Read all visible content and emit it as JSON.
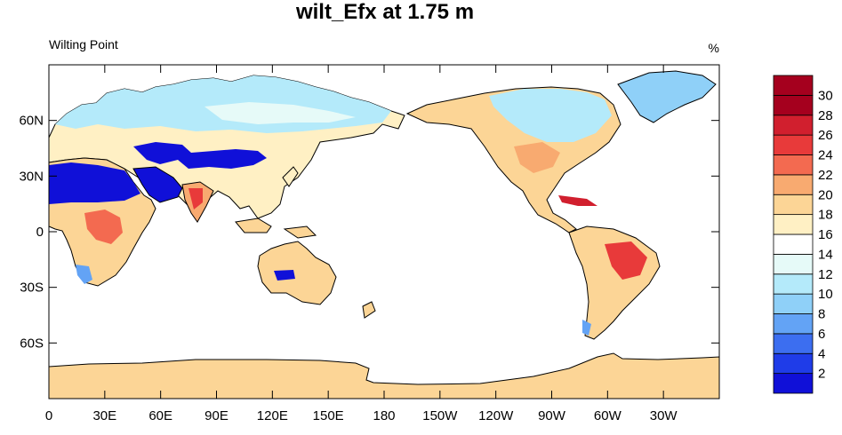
{
  "chart_data": {
    "type": "heatmap",
    "title": "wilt_Efx at 1.75 m",
    "subtitle_left": "Wilting Point",
    "units": "%",
    "projection": "cylindrical equidistant, centered at 180",
    "x_ticks": [
      "0",
      "30E",
      "60E",
      "90E",
      "120E",
      "150E",
      "180",
      "150W",
      "120W",
      "90W",
      "60W",
      "30W"
    ],
    "y_ticks": [
      "60N",
      "30N",
      "0",
      "30S",
      "60S"
    ],
    "colorbar": {
      "labels": [
        "2",
        "4",
        "6",
        "8",
        "10",
        "12",
        "14",
        "16",
        "18",
        "20",
        "22",
        "24",
        "26",
        "28",
        "30"
      ],
      "colors": [
        "#1010d8",
        "#1f3ce8",
        "#3c6ef0",
        "#63a3f5",
        "#8fd0f8",
        "#b4eafa",
        "#e6faf8",
        "#ffffff",
        "#fff0c4",
        "#fcd596",
        "#f8aa70",
        "#f36a50",
        "#e83a3a",
        "#d11f2e",
        "#a5001e"
      ]
    },
    "regions": [
      {
        "region": "Antarctica",
        "approx_value_percent": 20
      },
      {
        "region": "Sahara / Arabia",
        "approx_value_percent": 2
      },
      {
        "region": "Central Asia desert belt",
        "approx_value_percent": 2
      },
      {
        "region": "Central Australia",
        "approx_value_percent": 2
      },
      {
        "region": "Greenland",
        "approx_value_percent": 11
      },
      {
        "region": "Siberia / Boreal Eurasia",
        "approx_value_percent": 12
      },
      {
        "region": "Canada / Boreal North America",
        "approx_value_percent": 12
      },
      {
        "region": "Central Africa",
        "approx_value_percent": 22
      },
      {
        "region": "Brazil",
        "approx_value_percent": 25
      },
      {
        "region": "India",
        "approx_value_percent": 24
      },
      {
        "region": "Cuba / Caribbean",
        "approx_value_percent": 28
      }
    ]
  }
}
